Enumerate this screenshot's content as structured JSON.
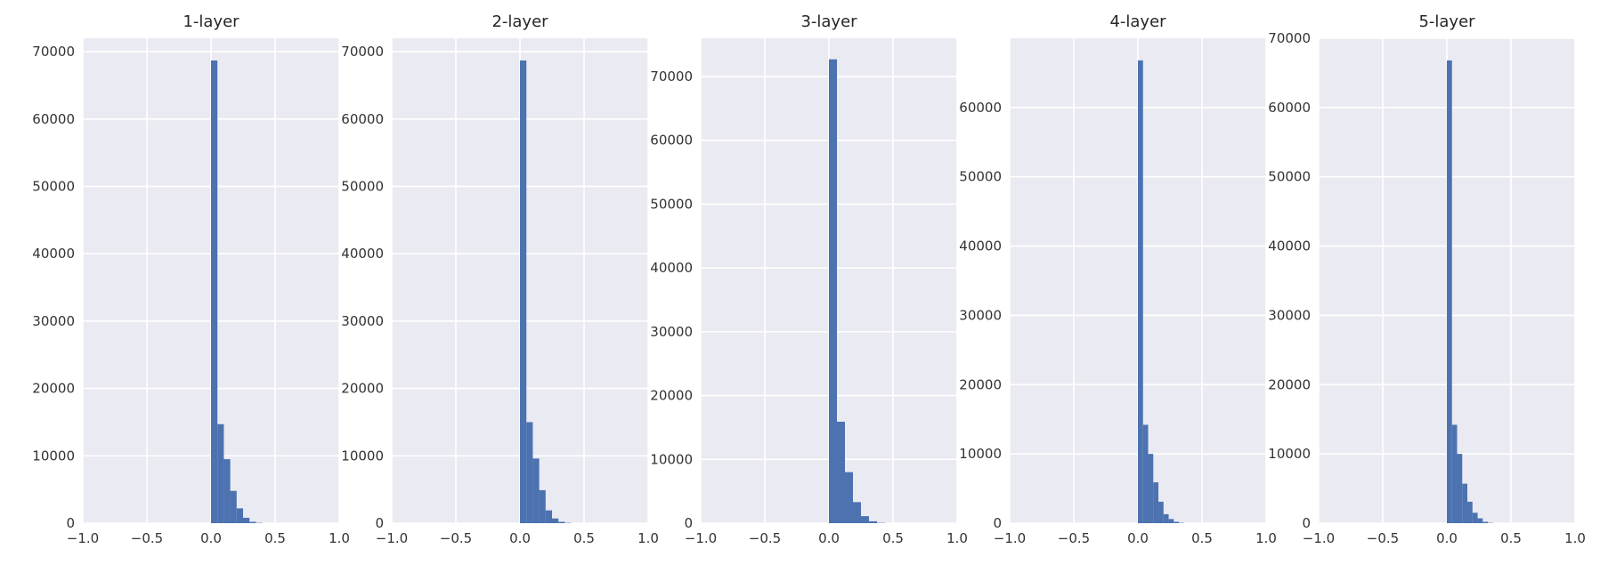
{
  "chart_data": [
    {
      "type": "bar",
      "title": "1-layer",
      "xlabel": "",
      "ylabel": "",
      "xlim": [
        -1.0,
        1.0
      ],
      "ylim": [
        0,
        72000
      ],
      "grid": true,
      "xticks": [
        -1.0,
        -0.5,
        0.0,
        0.5,
        1.0
      ],
      "xtick_labels": [
        "−1.0",
        "−0.5",
        "0.0",
        "0.5",
        "1.0"
      ],
      "yticks": [
        0,
        10000,
        20000,
        30000,
        40000,
        50000,
        60000,
        70000
      ],
      "ytick_labels": [
        "0",
        "10000",
        "20000",
        "30000",
        "40000",
        "50000",
        "60000",
        "70000"
      ],
      "bin_start": 0.0,
      "bin_width": 0.05,
      "values": [
        68700,
        14700,
        9500,
        4800,
        2200,
        800,
        200,
        50
      ]
    },
    {
      "type": "bar",
      "title": "2-layer",
      "xlabel": "",
      "ylabel": "",
      "xlim": [
        -1.0,
        1.0
      ],
      "ylim": [
        0,
        72000
      ],
      "grid": true,
      "xticks": [
        -1.0,
        -0.5,
        0.0,
        0.5,
        1.0
      ],
      "xtick_labels": [
        "−1.0",
        "−0.5",
        "0.0",
        "0.5",
        "1.0"
      ],
      "yticks": [
        0,
        10000,
        20000,
        30000,
        40000,
        50000,
        60000,
        70000
      ],
      "ytick_labels": [
        "0",
        "10000",
        "20000",
        "30000",
        "40000",
        "50000",
        "60000",
        "70000"
      ],
      "bin_start": 0.0,
      "bin_width": 0.05,
      "values": [
        68700,
        15000,
        9600,
        4900,
        1900,
        700,
        200,
        50
      ]
    },
    {
      "type": "bar",
      "title": "3-layer",
      "xlabel": "",
      "ylabel": "",
      "xlim": [
        -1.0,
        1.0
      ],
      "ylim": [
        0,
        76000
      ],
      "grid": true,
      "xticks": [
        -1.0,
        -0.5,
        0.0,
        0.5,
        1.0
      ],
      "xtick_labels": [
        "−1.0",
        "−0.5",
        "0.0",
        "0.5",
        "1.0"
      ],
      "yticks": [
        0,
        10000,
        20000,
        30000,
        40000,
        50000,
        60000,
        70000
      ],
      "ytick_labels": [
        "0",
        "10000",
        "20000",
        "30000",
        "40000",
        "50000",
        "60000",
        "70000"
      ],
      "bin_start": 0.0,
      "bin_width": 0.0625,
      "values": [
        72700,
        15900,
        8000,
        3300,
        1100,
        300,
        50
      ]
    },
    {
      "type": "bar",
      "title": "4-layer",
      "xlabel": "",
      "ylabel": "",
      "xlim": [
        -1.0,
        1.0
      ],
      "ylim": [
        0,
        70000
      ],
      "grid": true,
      "xticks": [
        -1.0,
        -0.5,
        0.0,
        0.5,
        1.0
      ],
      "xtick_labels": [
        "−1.0",
        "−0.5",
        "0.0",
        "0.5",
        "1.0"
      ],
      "yticks": [
        0,
        10000,
        20000,
        30000,
        40000,
        50000,
        60000
      ],
      "ytick_labels": [
        "0",
        "10000",
        "20000",
        "30000",
        "40000",
        "50000",
        "60000"
      ],
      "bin_start": 0.0,
      "bin_width": 0.04,
      "values": [
        66800,
        14200,
        10000,
        5900,
        3100,
        1300,
        600,
        200,
        50
      ]
    },
    {
      "type": "bar",
      "title": "5-layer",
      "xlabel": "",
      "ylabel": "",
      "xlim": [
        -1.0,
        1.0
      ],
      "ylim": [
        0,
        70000
      ],
      "grid": true,
      "xticks": [
        -1.0,
        -0.5,
        0.0,
        0.5,
        1.0
      ],
      "xtick_labels": [
        "−1.0",
        "−0.5",
        "0.0",
        "0.5",
        "1.0"
      ],
      "yticks": [
        0,
        10000,
        20000,
        30000,
        40000,
        50000,
        60000,
        70000
      ],
      "ytick_labels": [
        "0",
        "10000",
        "20000",
        "30000",
        "40000",
        "50000",
        "60000",
        "70000"
      ],
      "bin_start": 0.0,
      "bin_width": 0.04,
      "values": [
        66800,
        14200,
        10000,
        5700,
        3100,
        1500,
        700,
        200,
        50
      ]
    }
  ],
  "colors": {
    "axes_background": "#EAEAF2",
    "grid": "#FFFFFF",
    "bar": "#4C72B0",
    "text": "#333333"
  }
}
